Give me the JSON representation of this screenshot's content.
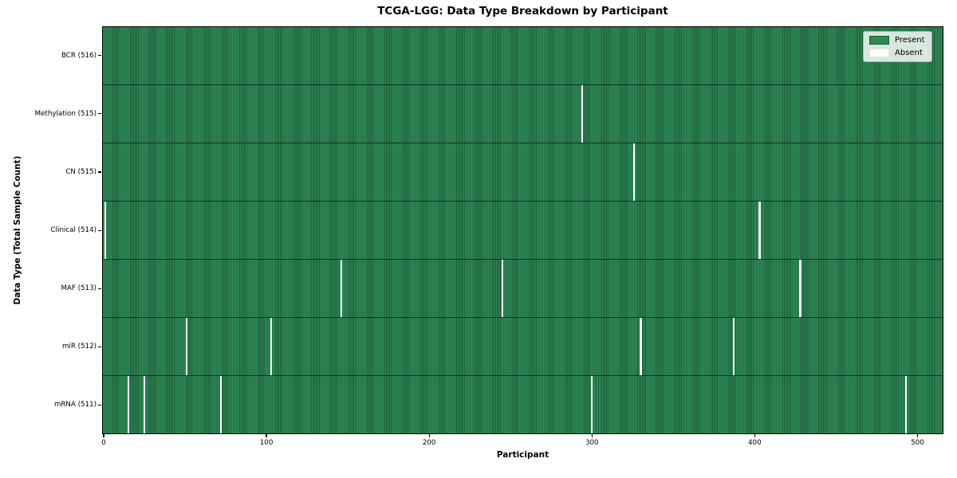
{
  "chart_data": {
    "type": "heatmap",
    "title": "TCGA-LGG: Data Type Breakdown by Participant",
    "xlabel": "Participant",
    "ylabel": "Data Type (Total Sample Count)",
    "x_ticks": [
      0,
      100,
      200,
      300,
      400,
      500
    ],
    "x_range": [
      0,
      516
    ],
    "n_participants": 516,
    "grid": false,
    "legend": {
      "position": "upper right",
      "entries": [
        {
          "label": "Present",
          "color": "#2e8b57"
        },
        {
          "label": "Absent",
          "color": "#ffffff"
        }
      ]
    },
    "rows": [
      {
        "label": "BCR (516)",
        "data_type": "BCR",
        "present_count": 516,
        "absent_participants": []
      },
      {
        "label": "Methylation (515)",
        "data_type": "Methylation",
        "present_count": 515,
        "absent_participants": [
          293
        ]
      },
      {
        "label": "CN (515)",
        "data_type": "CN",
        "present_count": 515,
        "absent_participants": [
          325
        ]
      },
      {
        "label": "Clinical (514)",
        "data_type": "Clinical",
        "present_count": 514,
        "absent_participants": [
          0,
          402
        ]
      },
      {
        "label": "MAF (513)",
        "data_type": "MAF",
        "present_count": 513,
        "absent_participants": [
          145,
          244,
          427
        ]
      },
      {
        "label": "miR (512)",
        "data_type": "miR",
        "present_count": 512,
        "absent_participants": [
          50,
          102,
          329,
          386
        ]
      },
      {
        "label": "mRNA (511)",
        "data_type": "mRNA",
        "present_count": 511,
        "absent_participants": [
          14,
          24,
          71,
          299,
          492
        ]
      }
    ],
    "colors": {
      "present": "#2e8b57",
      "present_edge": "#1c5a38",
      "absent": "#ffffff",
      "plot_border": "#000000",
      "background": "#ffffff"
    }
  }
}
